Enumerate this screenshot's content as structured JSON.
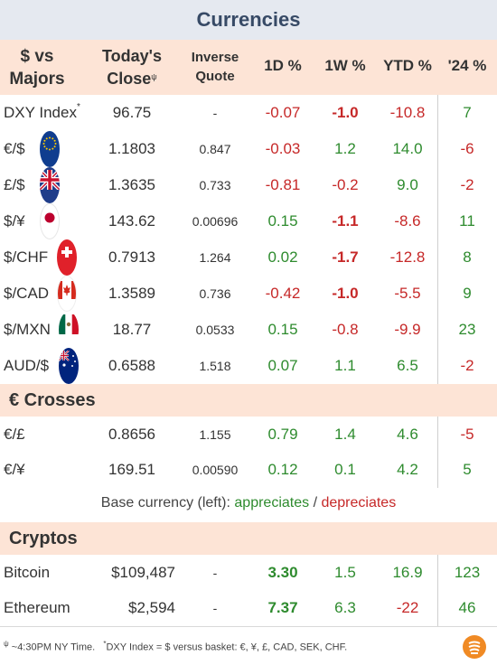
{
  "title": "Currencies",
  "headers": {
    "col0": [
      "$ vs",
      "Majors"
    ],
    "col1": [
      "Today's",
      "Close"
    ],
    "col1_mark": "ψ",
    "col2": [
      "Inverse",
      "Quote"
    ],
    "d1": "1D %",
    "w1": "1W %",
    "ytd": "YTD %",
    "y24": "'24 %"
  },
  "majors": [
    {
      "name": "DXY Index",
      "mark": "*",
      "close": "96.75",
      "inverse": "-",
      "d1": "-0.07",
      "w1": "-1.0",
      "ytd": "-10.8",
      "y24": "7",
      "flag": ""
    },
    {
      "name": "€/$",
      "close": "1.1803",
      "inverse": "0.847",
      "d1": "-0.03",
      "w1": "1.2",
      "ytd": "14.0",
      "y24": "-6",
      "flag": "eu-flag-icon"
    },
    {
      "name": "£/$",
      "close": "1.3635",
      "inverse": "0.733",
      "d1": "-0.81",
      "w1": "-0.2",
      "ytd": "9.0",
      "y24": "-2",
      "flag": "uk-flag-icon"
    },
    {
      "name": "$/¥",
      "close": "143.62",
      "inverse": "0.00696",
      "d1": "0.15",
      "w1": "-1.1",
      "ytd": "-8.6",
      "y24": "11",
      "flag": "japan-flag-icon"
    },
    {
      "name": "$/CHF",
      "close": "0.7913",
      "inverse": "1.264",
      "d1": "0.02",
      "w1": "-1.7",
      "ytd": "-12.8",
      "y24": "8",
      "flag": "swiss-flag-icon"
    },
    {
      "name": "$/CAD",
      "close": "1.3589",
      "inverse": "0.736",
      "d1": "-0.42",
      "w1": "-1.0",
      "ytd": "-5.5",
      "y24": "9",
      "flag": "canada-flag-icon"
    },
    {
      "name": "$/MXN",
      "close": "18.77",
      "inverse": "0.0533",
      "d1": "0.15",
      "w1": "-0.8",
      "ytd": "-9.9",
      "y24": "23",
      "flag": "mexico-flag-icon"
    },
    {
      "name": "AUD/$",
      "close": "0.6588",
      "inverse": "1.518",
      "d1": "0.07",
      "w1": "1.1",
      "ytd": "6.5",
      "y24": "-2",
      "flag": "australia-flag-icon"
    }
  ],
  "crosses_title": "€ Crosses",
  "crosses": [
    {
      "name": "€/£",
      "close": "0.8656",
      "inverse": "1.155",
      "d1": "0.79",
      "w1": "1.4",
      "ytd": "4.6",
      "y24": "-5"
    },
    {
      "name": "€/¥",
      "close": "169.51",
      "inverse": "0.00590",
      "d1": "0.12",
      "w1": "0.1",
      "ytd": "4.2",
      "y24": "5"
    }
  ],
  "legend": {
    "prefix": "Base currency (left):",
    "appreciates": "appreciates",
    "sep": "/",
    "depreciates": "depreciates"
  },
  "cryptos_title": "Cryptos",
  "cryptos": [
    {
      "name": "Bitcoin",
      "close": "$109,487",
      "inverse": "-",
      "d1": "3.30",
      "w1": "1.5",
      "ytd": "16.9",
      "y24": "123"
    },
    {
      "name": "Ethereum",
      "close": "$2,594",
      "inverse": "-",
      "d1": "7.37",
      "w1": "6.3",
      "ytd": "-22",
      "y24": "46"
    }
  ],
  "footer": {
    "mark1": "ψ",
    "note1": "~4:30PM NY Time.",
    "mark2": "*",
    "note2": "DXY Index = $ versus basket: €, ¥, £, CAD, SEK, CHF."
  },
  "colors": {
    "title_bg": "#e5e9f0",
    "title_text": "#374a66",
    "header_bg": "#fde4d6",
    "positive": "#2e8b2e",
    "negative": "#c62828",
    "brand_logo": "#f08a24"
  }
}
